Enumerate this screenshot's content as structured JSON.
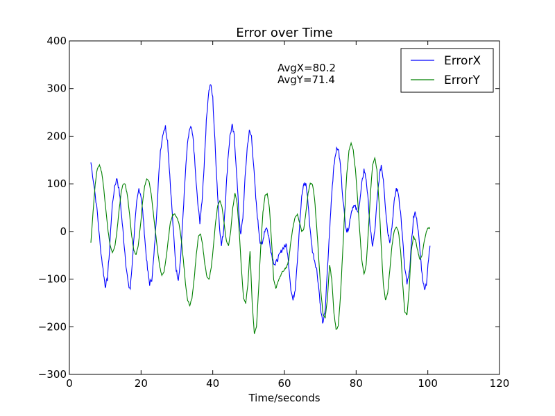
{
  "chart_data": {
    "type": "line",
    "title": "Error over Time",
    "xlabel": "Time/seconds",
    "ylabel": "",
    "xlim": [
      0,
      120
    ],
    "ylim": [
      -300,
      400
    ],
    "xticks": [
      0,
      20,
      40,
      60,
      80,
      100,
      120
    ],
    "yticks": [
      -300,
      -200,
      -100,
      0,
      100,
      200,
      300,
      400
    ],
    "xtick_labels": [
      "0",
      "20",
      "40",
      "60",
      "80",
      "100",
      "120"
    ],
    "ytick_labels": [
      "−300",
      "−200",
      "−100",
      "0",
      "100",
      "200",
      "300",
      "400"
    ],
    "grid": false,
    "legend_position": "top-right",
    "annotations": [
      "AvgX=80.2",
      "AvgY=71.4"
    ],
    "series": [
      {
        "name": "ErrorX",
        "color": "#0000ff",
        "points": [
          [
            6.0,
            145
          ],
          [
            7.0,
            90
          ],
          [
            7.8,
            40
          ],
          [
            8.6,
            -30
          ],
          [
            9.4,
            -80
          ],
          [
            10.0,
            -115
          ],
          [
            10.6,
            -100
          ],
          [
            11.2,
            -40
          ],
          [
            11.8,
            40
          ],
          [
            12.6,
            95
          ],
          [
            13.3,
            112
          ],
          [
            14.0,
            80
          ],
          [
            14.6,
            30
          ],
          [
            15.2,
            -20
          ],
          [
            15.8,
            -70
          ],
          [
            16.5,
            -115
          ],
          [
            17.0,
            -120
          ],
          [
            17.6,
            -60
          ],
          [
            18.2,
            10
          ],
          [
            18.8,
            60
          ],
          [
            19.4,
            90
          ],
          [
            20.0,
            75
          ],
          [
            20.6,
            30
          ],
          [
            21.2,
            -30
          ],
          [
            21.8,
            -80
          ],
          [
            22.4,
            -110
          ],
          [
            23.0,
            -100
          ],
          [
            23.6,
            -50
          ],
          [
            24.2,
            20
          ],
          [
            24.8,
            100
          ],
          [
            25.4,
            170
          ],
          [
            26.2,
            210
          ],
          [
            26.8,
            220
          ],
          [
            27.4,
            190
          ],
          [
            28.0,
            120
          ],
          [
            28.6,
            50
          ],
          [
            29.2,
            -20
          ],
          [
            29.8,
            -80
          ],
          [
            30.4,
            -100
          ],
          [
            31.0,
            -60
          ],
          [
            31.6,
            20
          ],
          [
            32.2,
            100
          ],
          [
            32.8,
            170
          ],
          [
            33.4,
            210
          ],
          [
            34.0,
            218
          ],
          [
            34.6,
            190
          ],
          [
            35.2,
            120
          ],
          [
            35.8,
            60
          ],
          [
            36.4,
            20
          ],
          [
            37.0,
            60
          ],
          [
            37.6,
            140
          ],
          [
            38.2,
            230
          ],
          [
            38.8,
            290
          ],
          [
            39.4,
            310
          ],
          [
            40.0,
            280
          ],
          [
            40.6,
            190
          ],
          [
            41.2,
            100
          ],
          [
            41.8,
            20
          ],
          [
            42.4,
            -30
          ],
          [
            43.0,
            0
          ],
          [
            43.6,
            70
          ],
          [
            44.2,
            150
          ],
          [
            44.8,
            200
          ],
          [
            45.4,
            222
          ],
          [
            46.0,
            200
          ],
          [
            46.6,
            130
          ],
          [
            47.2,
            50
          ],
          [
            47.8,
            -10
          ],
          [
            48.4,
            30
          ],
          [
            49.0,
            110
          ],
          [
            49.6,
            175
          ],
          [
            50.2,
            210
          ],
          [
            50.8,
            200
          ],
          [
            51.4,
            140
          ],
          [
            52.0,
            70
          ],
          [
            52.6,
            20
          ],
          [
            53.2,
            -20
          ],
          [
            53.8,
            -30
          ],
          [
            54.4,
            0
          ],
          [
            55.0,
            10
          ],
          [
            55.6,
            -10
          ],
          [
            56.2,
            -40
          ],
          [
            56.8,
            -60
          ],
          [
            57.4,
            -70
          ],
          [
            58.0,
            -60
          ],
          [
            58.6,
            -50
          ],
          [
            59.2,
            -40
          ],
          [
            60.0,
            -30
          ],
          [
            60.6,
            -30
          ],
          [
            61.2,
            -70
          ],
          [
            61.8,
            -120
          ],
          [
            62.4,
            -145
          ],
          [
            63.0,
            -120
          ],
          [
            63.6,
            -60
          ],
          [
            64.2,
            10
          ],
          [
            64.8,
            70
          ],
          [
            65.4,
            100
          ],
          [
            66.0,
            100
          ],
          [
            66.6,
            60
          ],
          [
            67.2,
            0
          ],
          [
            67.8,
            -40
          ],
          [
            68.4,
            -60
          ],
          [
            69.0,
            -80
          ],
          [
            69.6,
            -120
          ],
          [
            70.2,
            -170
          ],
          [
            70.8,
            -195
          ],
          [
            71.4,
            -160
          ],
          [
            72.0,
            -80
          ],
          [
            72.6,
            0
          ],
          [
            73.2,
            80
          ],
          [
            73.8,
            140
          ],
          [
            74.4,
            170
          ],
          [
            75.0,
            175
          ],
          [
            75.6,
            140
          ],
          [
            76.2,
            80
          ],
          [
            76.8,
            30
          ],
          [
            77.4,
            0
          ],
          [
            78.0,
            10
          ],
          [
            78.6,
            40
          ],
          [
            79.2,
            55
          ],
          [
            79.8,
            50
          ],
          [
            80.4,
            40
          ],
          [
            81.0,
            60
          ],
          [
            81.6,
            100
          ],
          [
            82.2,
            130
          ],
          [
            82.8,
            110
          ],
          [
            83.4,
            60
          ],
          [
            84.0,
            0
          ],
          [
            84.6,
            -30
          ],
          [
            85.2,
            0
          ],
          [
            85.8,
            60
          ],
          [
            86.4,
            110
          ],
          [
            87.0,
            140
          ],
          [
            87.6,
            110
          ],
          [
            88.2,
            50
          ],
          [
            88.8,
            0
          ],
          [
            89.4,
            -20
          ],
          [
            90.0,
            10
          ],
          [
            90.6,
            60
          ],
          [
            91.2,
            90
          ],
          [
            91.8,
            80
          ],
          [
            92.4,
            40
          ],
          [
            93.0,
            -20
          ],
          [
            93.6,
            -80
          ],
          [
            94.2,
            -110
          ],
          [
            94.8,
            -90
          ],
          [
            95.4,
            -30
          ],
          [
            96.0,
            30
          ],
          [
            96.6,
            40
          ],
          [
            97.2,
            10
          ],
          [
            97.8,
            -40
          ],
          [
            98.4,
            -90
          ],
          [
            99.0,
            -120
          ],
          [
            99.6,
            -110
          ],
          [
            100.2,
            -60
          ],
          [
            100.6,
            -30
          ]
        ]
      },
      {
        "name": "ErrorY",
        "color": "#008000",
        "points": [
          [
            6.0,
            -22
          ],
          [
            6.6,
            40
          ],
          [
            7.2,
            100
          ],
          [
            7.8,
            132
          ],
          [
            8.4,
            140
          ],
          [
            9.0,
            125
          ],
          [
            9.6,
            90
          ],
          [
            10.2,
            45
          ],
          [
            10.8,
            0
          ],
          [
            11.4,
            -30
          ],
          [
            12.0,
            -45
          ],
          [
            12.6,
            -35
          ],
          [
            13.2,
            -5
          ],
          [
            13.8,
            40
          ],
          [
            14.4,
            80
          ],
          [
            15.0,
            100
          ],
          [
            15.6,
            98
          ],
          [
            16.2,
            75
          ],
          [
            16.8,
            35
          ],
          [
            17.4,
            -10
          ],
          [
            18.0,
            -40
          ],
          [
            18.6,
            -50
          ],
          [
            19.2,
            -30
          ],
          [
            19.8,
            10
          ],
          [
            20.4,
            60
          ],
          [
            21.0,
            95
          ],
          [
            21.6,
            110
          ],
          [
            22.2,
            105
          ],
          [
            22.8,
            80
          ],
          [
            23.4,
            40
          ],
          [
            24.0,
            0
          ],
          [
            24.6,
            -40
          ],
          [
            25.2,
            -75
          ],
          [
            25.8,
            -92
          ],
          [
            26.4,
            -85
          ],
          [
            27.0,
            -55
          ],
          [
            27.6,
            -15
          ],
          [
            28.2,
            20
          ],
          [
            28.8,
            35
          ],
          [
            29.4,
            37
          ],
          [
            30.0,
            30
          ],
          [
            30.6,
            15
          ],
          [
            31.2,
            -15
          ],
          [
            31.8,
            -60
          ],
          [
            32.4,
            -110
          ],
          [
            33.0,
            -145
          ],
          [
            33.6,
            -155
          ],
          [
            34.2,
            -140
          ],
          [
            34.8,
            -100
          ],
          [
            35.4,
            -50
          ],
          [
            36.0,
            -10
          ],
          [
            36.6,
            -5
          ],
          [
            37.2,
            -30
          ],
          [
            37.8,
            -70
          ],
          [
            38.4,
            -95
          ],
          [
            39.0,
            -100
          ],
          [
            39.6,
            -75
          ],
          [
            40.2,
            -30
          ],
          [
            40.8,
            20
          ],
          [
            41.4,
            55
          ],
          [
            42.0,
            65
          ],
          [
            42.6,
            50
          ],
          [
            43.2,
            15
          ],
          [
            43.8,
            -20
          ],
          [
            44.4,
            -30
          ],
          [
            45.0,
            0
          ],
          [
            45.6,
            50
          ],
          [
            46.2,
            80
          ],
          [
            46.8,
            60
          ],
          [
            47.4,
            0
          ],
          [
            48.0,
            -80
          ],
          [
            48.6,
            -140
          ],
          [
            49.2,
            -150
          ],
          [
            49.8,
            -110
          ],
          [
            50.4,
            -40
          ],
          [
            51.0,
            -150
          ],
          [
            51.6,
            -215
          ],
          [
            52.2,
            -200
          ],
          [
            52.8,
            -120
          ],
          [
            53.4,
            -30
          ],
          [
            54.0,
            40
          ],
          [
            54.6,
            75
          ],
          [
            55.2,
            80
          ],
          [
            55.8,
            50
          ],
          [
            56.4,
            -20
          ],
          [
            57.0,
            -100
          ],
          [
            57.6,
            -120
          ],
          [
            58.2,
            -105
          ],
          [
            58.8,
            -95
          ],
          [
            59.4,
            -85
          ],
          [
            60.0,
            -80
          ],
          [
            60.6,
            -75
          ],
          [
            61.2,
            -60
          ],
          [
            61.8,
            -20
          ],
          [
            62.4,
            10
          ],
          [
            63.0,
            30
          ],
          [
            63.6,
            35
          ],
          [
            64.2,
            20
          ],
          [
            64.8,
            0
          ],
          [
            65.4,
            5
          ],
          [
            66.0,
            40
          ],
          [
            66.6,
            80
          ],
          [
            67.2,
            100
          ],
          [
            67.8,
            100
          ],
          [
            68.4,
            70
          ],
          [
            69.0,
            10
          ],
          [
            69.6,
            -60
          ],
          [
            70.2,
            -130
          ],
          [
            70.8,
            -175
          ],
          [
            71.4,
            -180
          ],
          [
            72.0,
            -140
          ],
          [
            72.6,
            -70
          ],
          [
            73.2,
            -100
          ],
          [
            73.8,
            -170
          ],
          [
            74.4,
            -205
          ],
          [
            75.0,
            -200
          ],
          [
            75.6,
            -140
          ],
          [
            76.2,
            -50
          ],
          [
            76.8,
            40
          ],
          [
            77.4,
            120
          ],
          [
            78.0,
            170
          ],
          [
            78.6,
            185
          ],
          [
            79.2,
            170
          ],
          [
            79.8,
            130
          ],
          [
            80.4,
            70
          ],
          [
            81.0,
            0
          ],
          [
            81.6,
            -60
          ],
          [
            82.2,
            -90
          ],
          [
            82.8,
            -70
          ],
          [
            83.4,
            0
          ],
          [
            84.0,
            80
          ],
          [
            84.6,
            140
          ],
          [
            85.2,
            155
          ],
          [
            85.8,
            130
          ],
          [
            86.4,
            60
          ],
          [
            87.0,
            -30
          ],
          [
            87.6,
            -110
          ],
          [
            88.2,
            -145
          ],
          [
            88.8,
            -130
          ],
          [
            89.4,
            -80
          ],
          [
            90.0,
            -30
          ],
          [
            90.6,
            0
          ],
          [
            91.2,
            10
          ],
          [
            91.8,
            0
          ],
          [
            92.4,
            -40
          ],
          [
            93.0,
            -110
          ],
          [
            93.6,
            -170
          ],
          [
            94.2,
            -175
          ],
          [
            94.8,
            -120
          ],
          [
            95.4,
            -40
          ],
          [
            96.0,
            -10
          ],
          [
            96.6,
            -20
          ],
          [
            97.2,
            -40
          ],
          [
            97.8,
            -60
          ],
          [
            98.4,
            -50
          ],
          [
            99.0,
            -20
          ],
          [
            99.6,
            0
          ],
          [
            100.2,
            8
          ],
          [
            100.6,
            6
          ]
        ]
      }
    ]
  }
}
